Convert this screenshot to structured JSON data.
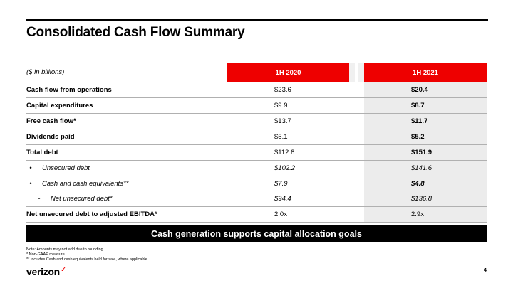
{
  "title": "Consolidated Cash Flow Summary",
  "units_label": "($ in billions)",
  "columns": [
    "1H 2020",
    "1H 2021"
  ],
  "rows": [
    {
      "label": "Cash flow from operations",
      "v2020": "$23.6",
      "v2021": "$20.4"
    },
    {
      "label": "Capital expenditures",
      "v2020": "$9.9",
      "v2021": "$8.7"
    },
    {
      "label": "Free cash flow*",
      "v2020": "$13.7",
      "v2021": "$11.7"
    },
    {
      "label": "Dividends paid",
      "v2020": "$5.1",
      "v2021": "$5.2"
    },
    {
      "label": "Total debt",
      "v2020": "$112.8",
      "v2021": "$151.9"
    },
    {
      "label": "Unsecured debt",
      "v2020": "$102.2",
      "v2021": "$141.6"
    },
    {
      "label": "Cash and cash equivalents**",
      "v2020": "$7.9",
      "v2021": "$4.8"
    },
    {
      "label": "Net unsecured debt*",
      "v2020": "$94.4",
      "v2021": "$136.8"
    },
    {
      "label": "Net unsecured debt to adjusted EBITDA*",
      "v2020": "2.0x",
      "v2021": "2.9x"
    }
  ],
  "banner": "Cash generation  supports capital allocation goals",
  "notes": [
    "Note: Amounts may not add due to rounding.",
    "* Non-GAAP measure.",
    "** Includes Cash and cash equivalents held for sale, where applicable."
  ],
  "logo_text": "verizon",
  "page_number": "4",
  "colors": {
    "accent": "#ee0000",
    "banner_bg": "#000000",
    "shade": "#ececec"
  }
}
